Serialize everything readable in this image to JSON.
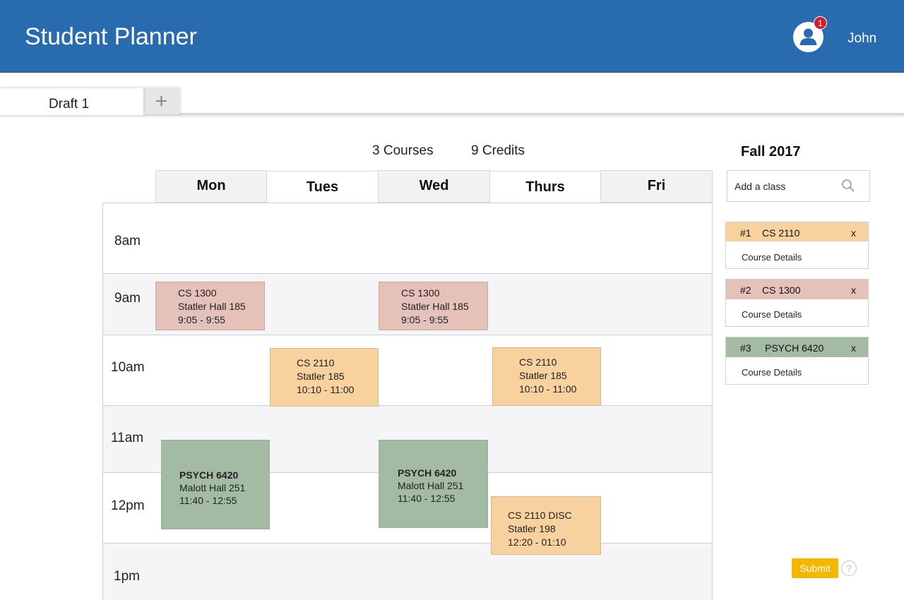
{
  "header": {
    "app_title": "Student Planner",
    "notification_count": "1",
    "username": "John"
  },
  "tabs": {
    "items": [
      {
        "label": "Draft 1",
        "active": true
      }
    ],
    "add_symbol": "+"
  },
  "summary": {
    "courses": "3 Courses",
    "credits": "9 Credits",
    "term": "Fall 2017"
  },
  "schedule": {
    "days": [
      "Mon",
      "Tues",
      "Wed",
      "Thurs",
      "Fri"
    ],
    "times": [
      "8am",
      "9am",
      "10am",
      "11am",
      "12pm",
      "1pm"
    ],
    "blocks": [
      {
        "course": "CS 1300",
        "location": "Statler Hall 185",
        "time": "9:05 - 9:55",
        "day": "Mon"
      },
      {
        "course": "CS 1300",
        "location": "Statler Hall 185",
        "time": "9:05 - 9:55",
        "day": "Wed"
      },
      {
        "course": "CS 2110",
        "location": "Statler 185",
        "time": "10:10 - 11:00",
        "day": "Tues"
      },
      {
        "course": "CS 2110",
        "location": "Statler 185",
        "time": "10:10 - 11:00",
        "day": "Thurs"
      },
      {
        "course": "PSYCH 6420",
        "location": "Malott Hall 251",
        "time": "11:40 - 12:55",
        "day": "Mon"
      },
      {
        "course": "PSYCH 6420",
        "location": "Malott Hall 251",
        "time": "11:40 - 12:55",
        "day": "Wed"
      },
      {
        "course": "CS 2110 DISC",
        "location": "Statler 198",
        "time": "12:20 - 01:10",
        "day": "Thurs"
      }
    ]
  },
  "sidebar": {
    "search": {
      "placeholder": "Add a class",
      "icon": "search-icon"
    },
    "courses": [
      {
        "num": "#1",
        "code": "CS 2110",
        "close": "x",
        "details": "Course Details",
        "color": "#f7d19e"
      },
      {
        "num": "#2",
        "code": "CS 1300",
        "close": "x",
        "details": "Course Details",
        "color": "#e4c1b9"
      },
      {
        "num": "#3",
        "code": "PSYCH 6420",
        "close": "x",
        "details": "Course Details",
        "color": "#a3bba2"
      }
    ],
    "submit_label": "Submit",
    "help_symbol": "?"
  },
  "colors": {
    "header": "#286baf",
    "cs1300": "#e4c1b9",
    "cs2110": "#f7d19e",
    "psych6420": "#a3bba2",
    "submit": "#f5b800",
    "badge": "#d0202e"
  }
}
